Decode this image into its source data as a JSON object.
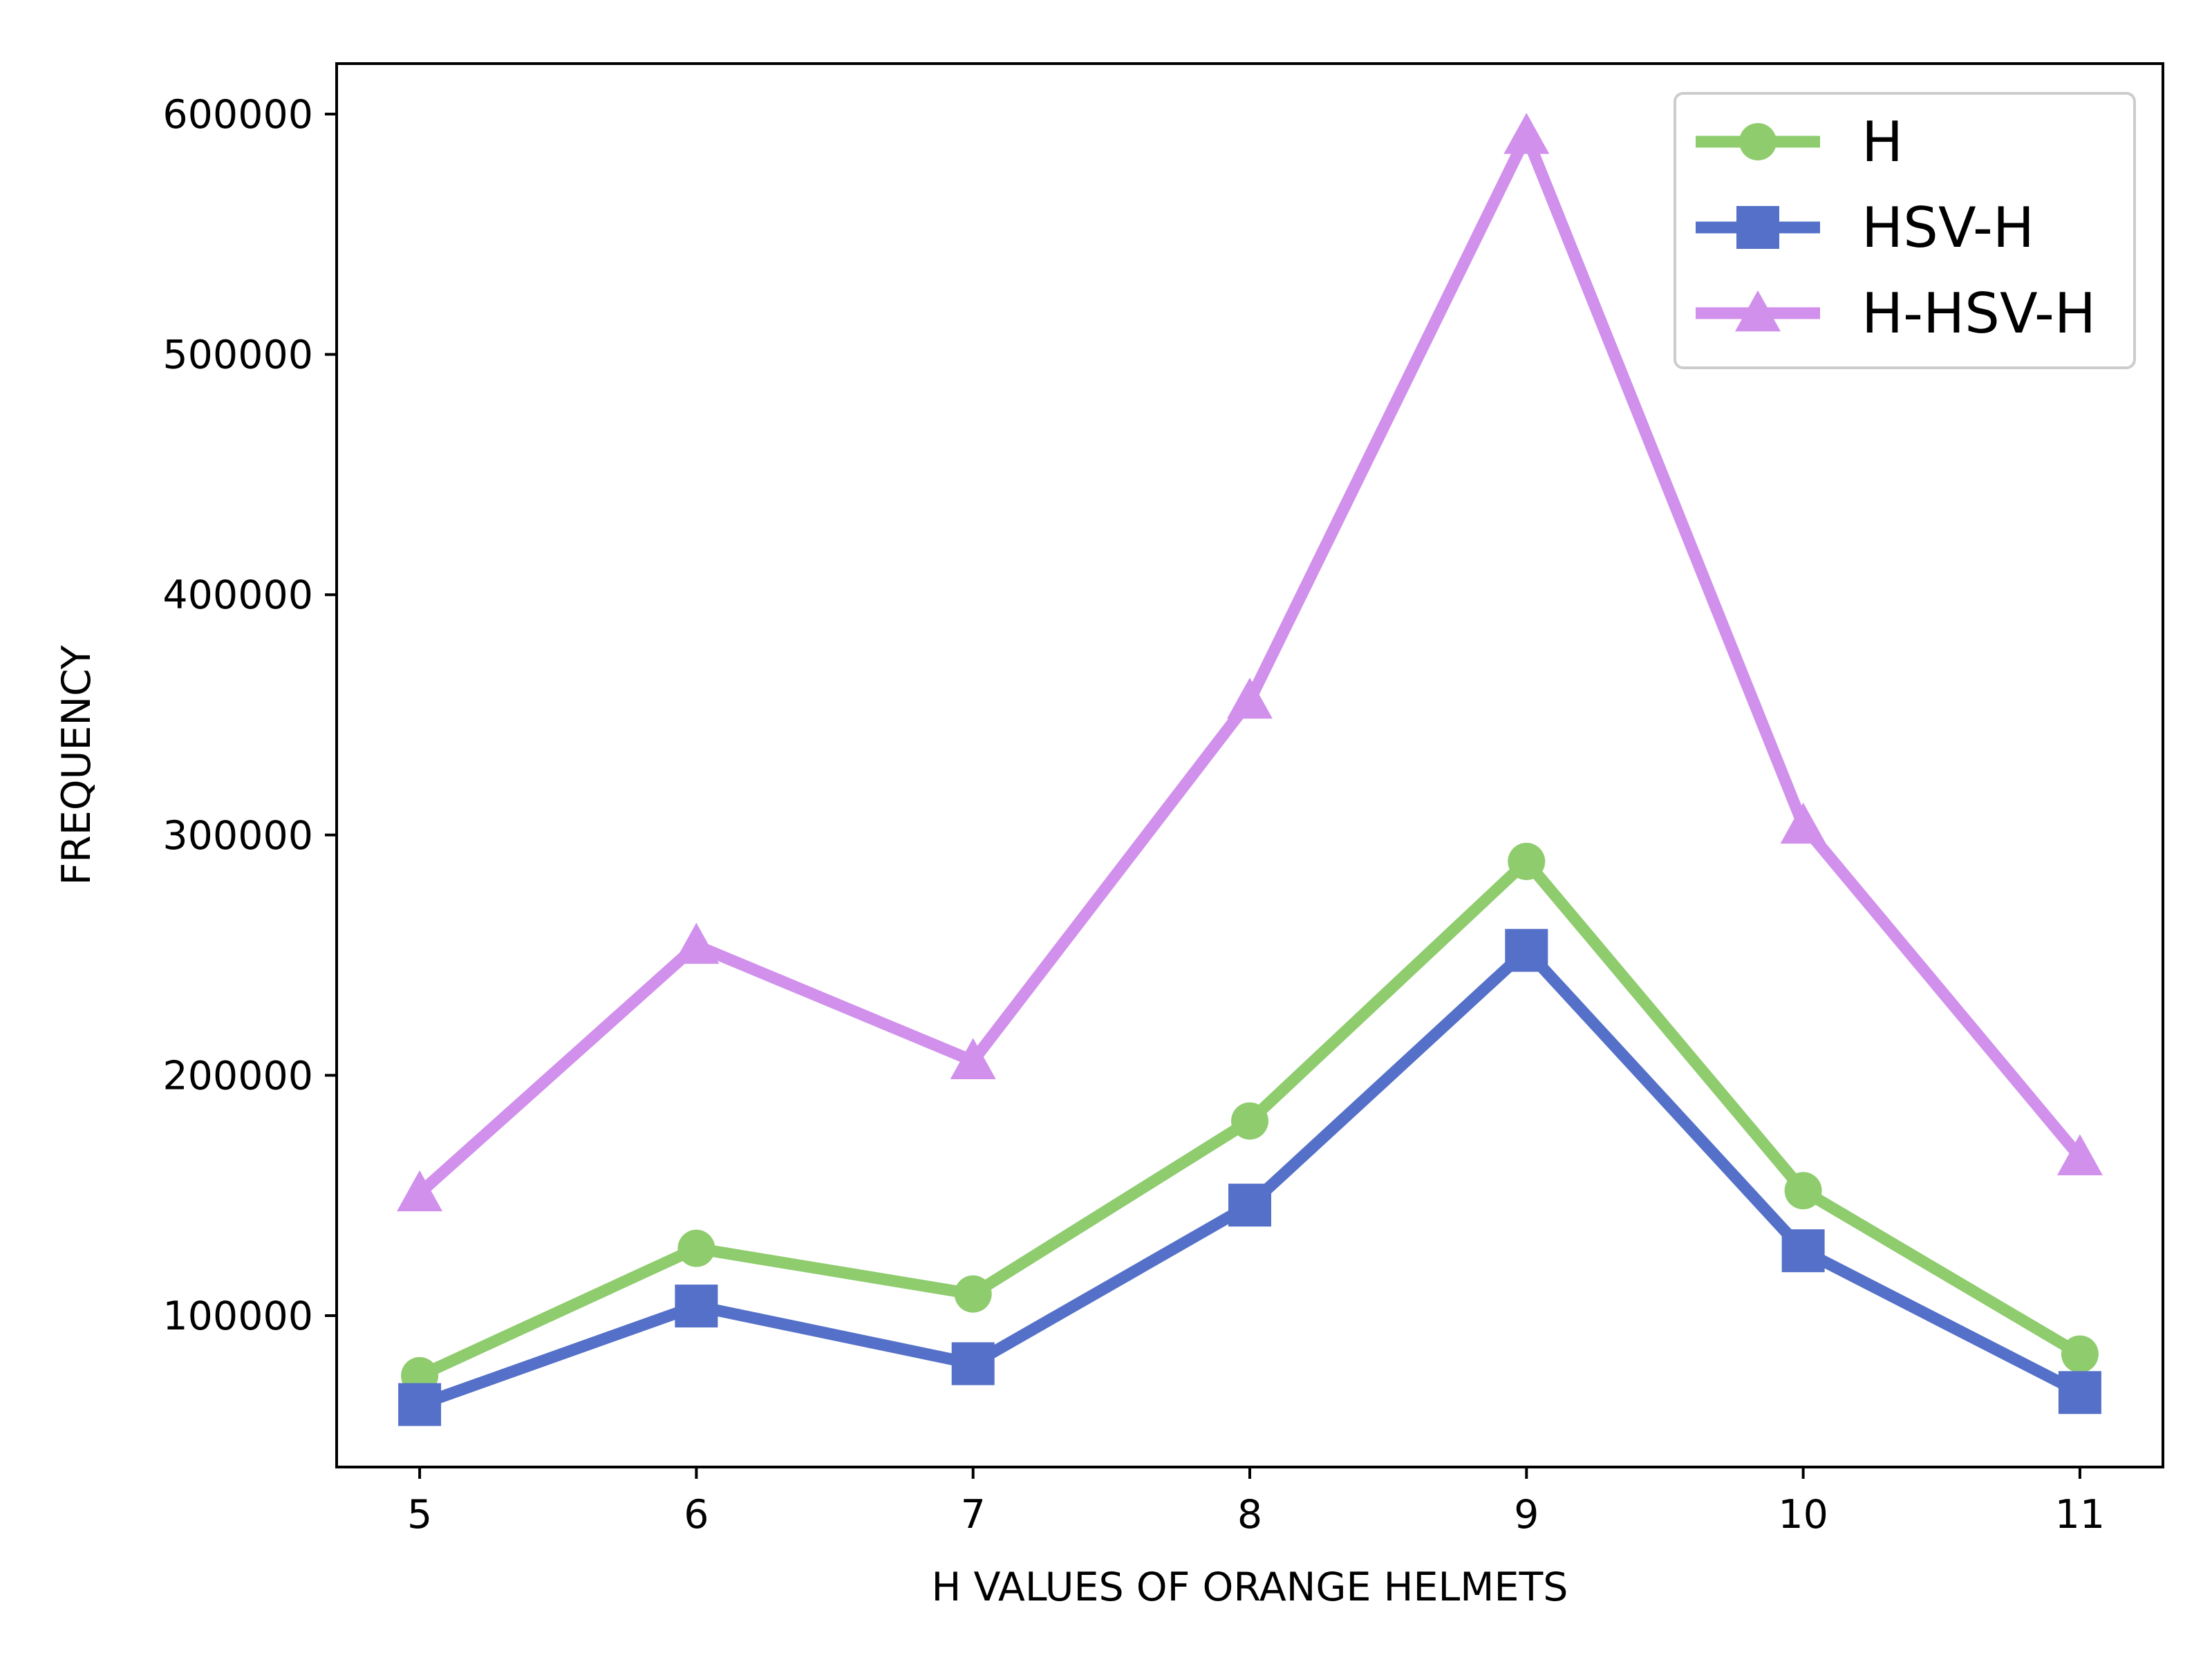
{
  "chart_data": {
    "type": "line",
    "title": "",
    "xlabel": "H VALUES OF ORANGE HELMETS",
    "ylabel": "FREQUENCY",
    "x": [
      5,
      6,
      7,
      8,
      9,
      10,
      11
    ],
    "xlim": [
      4.7,
      11.3
    ],
    "ylim": [
      37000,
      621000
    ],
    "xticks": [
      "5",
      "6",
      "7",
      "8",
      "9",
      "10",
      "11"
    ],
    "yticks": [
      "100000",
      "200000",
      "300000",
      "400000",
      "500000",
      "600000"
    ],
    "ytick_values": [
      100000,
      200000,
      300000,
      400000,
      500000,
      600000
    ],
    "grid": false,
    "legend_position": "top-right",
    "series": [
      {
        "name": "H",
        "color": "#8fcc6e",
        "marker": "circle",
        "values": [
          75000,
          128000,
          109000,
          181000,
          289000,
          152000,
          84000
        ]
      },
      {
        "name": "HSV-H",
        "color": "#5470c8",
        "marker": "square",
        "values": [
          63000,
          104000,
          80000,
          146000,
          252000,
          127000,
          68000
        ]
      },
      {
        "name": "H-HSV-H",
        "color": "#d090ec",
        "marker": "triangle",
        "values": [
          151000,
          254000,
          206000,
          356000,
          591000,
          304000,
          166000
        ]
      }
    ]
  }
}
